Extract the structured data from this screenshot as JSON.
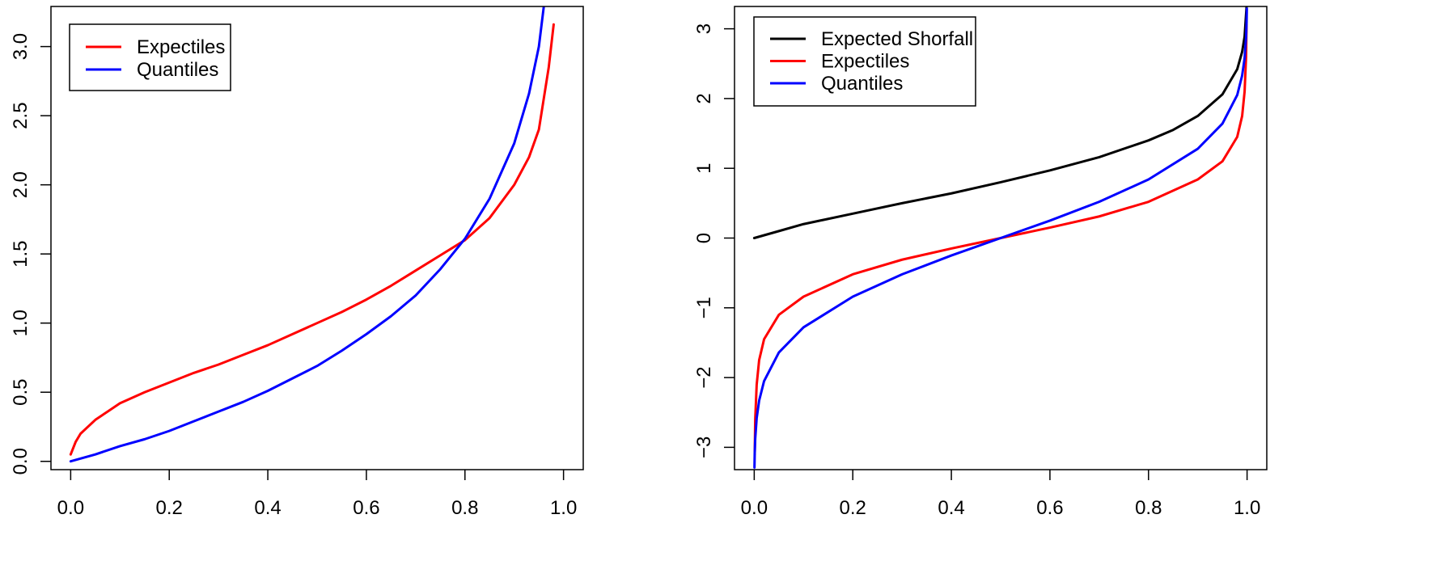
{
  "chart_data": [
    {
      "type": "line",
      "title": "",
      "xlabel": "",
      "ylabel": "",
      "xlim": [
        -0.04,
        1.04
      ],
      "ylim": [
        -0.06,
        3.29
      ],
      "x_ticks": [
        0.0,
        0.2,
        0.4,
        0.6,
        0.8,
        1.0
      ],
      "x_tick_labels": [
        "0.0",
        "0.2",
        "0.4",
        "0.6",
        "0.8",
        "1.0"
      ],
      "y_ticks": [
        0.0,
        0.5,
        1.0,
        1.5,
        2.0,
        2.5,
        3.0
      ],
      "y_tick_labels": [
        "0.0",
        "0.5",
        "1.0",
        "1.5",
        "2.0",
        "2.5",
        "3.0"
      ],
      "grid": false,
      "legend_position": "top-left",
      "legend": [
        "Expectiles",
        "Quantiles"
      ],
      "series": [
        {
          "name": "Expectiles",
          "color": "#ff0000",
          "x": [
            0.0,
            0.01,
            0.02,
            0.05,
            0.1,
            0.15,
            0.2,
            0.25,
            0.3,
            0.35,
            0.4,
            0.45,
            0.5,
            0.55,
            0.6,
            0.65,
            0.7,
            0.75,
            0.8,
            0.85,
            0.9,
            0.93,
            0.95,
            0.97,
            0.98
          ],
          "y": [
            0.05,
            0.14,
            0.2,
            0.3,
            0.42,
            0.5,
            0.57,
            0.64,
            0.7,
            0.77,
            0.84,
            0.92,
            1.0,
            1.08,
            1.17,
            1.27,
            1.38,
            1.49,
            1.6,
            1.76,
            2.0,
            2.2,
            2.4,
            2.85,
            3.16
          ]
        },
        {
          "name": "Quantiles",
          "color": "#0000ff",
          "x": [
            0.0,
            0.05,
            0.1,
            0.15,
            0.2,
            0.25,
            0.3,
            0.35,
            0.4,
            0.45,
            0.5,
            0.55,
            0.6,
            0.65,
            0.7,
            0.75,
            0.8,
            0.85,
            0.9,
            0.93,
            0.95,
            0.96
          ],
          "y": [
            0.0,
            0.05,
            0.11,
            0.16,
            0.22,
            0.29,
            0.36,
            0.43,
            0.51,
            0.6,
            0.69,
            0.8,
            0.92,
            1.05,
            1.2,
            1.39,
            1.61,
            1.9,
            2.3,
            2.66,
            3.0,
            3.29
          ]
        }
      ]
    },
    {
      "type": "line",
      "title": "",
      "xlabel": "",
      "ylabel": "",
      "xlim": [
        -0.04,
        1.04
      ],
      "ylim": [
        -3.32,
        3.32
      ],
      "x_ticks": [
        0.0,
        0.2,
        0.4,
        0.6,
        0.8,
        1.0
      ],
      "x_tick_labels": [
        "0.0",
        "0.2",
        "0.4",
        "0.6",
        "0.8",
        "1.0"
      ],
      "y_ticks": [
        -3,
        -2,
        -1,
        0,
        1,
        2,
        3
      ],
      "y_tick_labels": [
        "−3",
        "−2",
        "−1",
        "0",
        "1",
        "2",
        "3"
      ],
      "grid": false,
      "legend_position": "top-left",
      "legend": [
        "Expected Shorfall",
        "Expectiles",
        "Quantiles"
      ],
      "series": [
        {
          "name": "Expected Shorfall",
          "color": "#000000",
          "x": [
            0.0,
            0.05,
            0.1,
            0.2,
            0.3,
            0.4,
            0.5,
            0.6,
            0.7,
            0.8,
            0.85,
            0.9,
            0.95,
            0.98,
            0.99,
            0.995,
            0.999
          ],
          "y": [
            0.0,
            0.1,
            0.2,
            0.35,
            0.5,
            0.64,
            0.8,
            0.97,
            1.16,
            1.4,
            1.55,
            1.75,
            2.06,
            2.42,
            2.67,
            2.89,
            3.32
          ]
        },
        {
          "name": "Expectiles",
          "color": "#ff0000",
          "x": [
            0.001,
            0.002,
            0.005,
            0.01,
            0.02,
            0.05,
            0.1,
            0.2,
            0.3,
            0.4,
            0.5,
            0.6,
            0.7,
            0.8,
            0.9,
            0.95,
            0.98,
            0.99,
            0.995,
            0.998,
            0.999
          ],
          "y": [
            -3.1,
            -2.6,
            -2.1,
            -1.75,
            -1.45,
            -1.1,
            -0.84,
            -0.52,
            -0.31,
            -0.15,
            0.0,
            0.15,
            0.31,
            0.52,
            0.84,
            1.1,
            1.45,
            1.75,
            2.1,
            2.6,
            3.1
          ]
        },
        {
          "name": "Quantiles",
          "color": "#0000ff",
          "x": [
            0.0005,
            0.001,
            0.002,
            0.005,
            0.01,
            0.02,
            0.05,
            0.1,
            0.2,
            0.3,
            0.4,
            0.5,
            0.6,
            0.7,
            0.8,
            0.9,
            0.95,
            0.98,
            0.99,
            0.995,
            0.998,
            0.999,
            0.9995
          ],
          "y": [
            -3.29,
            -3.09,
            -2.88,
            -2.58,
            -2.33,
            -2.05,
            -1.64,
            -1.28,
            -0.84,
            -0.52,
            -0.25,
            0.0,
            0.25,
            0.52,
            0.84,
            1.28,
            1.64,
            2.05,
            2.33,
            2.58,
            2.88,
            3.09,
            3.29
          ]
        }
      ]
    }
  ]
}
